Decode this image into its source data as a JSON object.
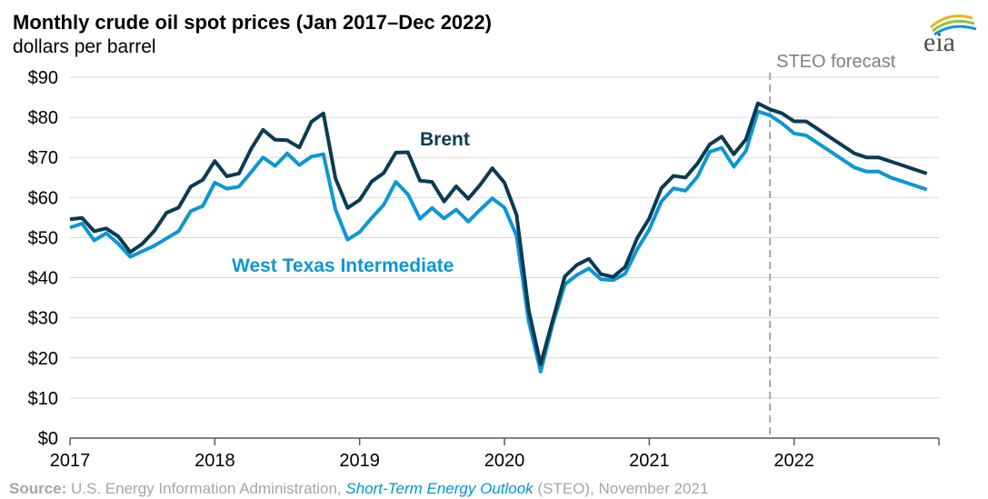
{
  "title": "Monthly crude oil spot prices (Jan 2017–Dec 2022)",
  "subtitle": "dollars per barrel",
  "source": {
    "label": "Source:",
    "text1": " U.S. Energy Information Administration, ",
    "link": "Short-Term Energy Outlook",
    "text2": " (STEO), November 2021"
  },
  "logo": {
    "text": "eia",
    "icon": "eia-logo-icon"
  },
  "colors": {
    "brent": "#0b3b52",
    "wti": "#0e96d3",
    "grid": "#d9d9d9",
    "forecast": "#a6a6a6"
  },
  "chart_data": {
    "type": "line",
    "title": "Monthly crude oil spot prices (Jan 2017–Dec 2022)",
    "ylabel": "dollars per barrel",
    "x_start": "2017-01",
    "frequency": "monthly",
    "ylim": [
      0,
      90
    ],
    "yticks": [
      0,
      10,
      20,
      30,
      40,
      50,
      60,
      70,
      80,
      90
    ],
    "ytick_labels": [
      "$0",
      "$10",
      "$20",
      "$30",
      "$40",
      "$50",
      "$60",
      "$70",
      "$80",
      "$90"
    ],
    "xtick_labels": [
      "2017",
      "2018",
      "2019",
      "2020",
      "2021",
      "2022"
    ],
    "grid": true,
    "forecast": {
      "label": "STEO forecast",
      "start": "2021-11"
    },
    "series": [
      {
        "name": "Brent",
        "color": "#0b3b52",
        "values": [
          54.6,
          54.9,
          51.6,
          52.3,
          50.3,
          46.4,
          48.5,
          51.7,
          56.2,
          57.5,
          62.7,
          64.4,
          69.1,
          65.3,
          66.0,
          72.1,
          76.9,
          74.4,
          74.3,
          72.5,
          78.9,
          81.0,
          64.8,
          57.4,
          59.4,
          64.0,
          66.1,
          71.2,
          71.3,
          64.2,
          63.9,
          59.0,
          62.8,
          59.7,
          63.2,
          67.3,
          63.7,
          55.7,
          32.0,
          18.4,
          29.4,
          40.3,
          43.2,
          44.7,
          40.9,
          40.2,
          42.7,
          49.9,
          54.8,
          62.3,
          65.4,
          65.0,
          68.5,
          73.2,
          75.2,
          70.8,
          74.5,
          83.5,
          82.0,
          81.0,
          79.0,
          79.0,
          77.0,
          75.0,
          73.0,
          71.0,
          70.0,
          70.0,
          69.0,
          68.0,
          67.0,
          66.0
        ]
      },
      {
        "name": "West Texas Intermediate",
        "color": "#0e96d3",
        "values": [
          52.5,
          53.5,
          49.3,
          51.1,
          48.5,
          45.2,
          46.6,
          48.0,
          49.8,
          51.6,
          56.6,
          57.9,
          63.7,
          62.2,
          62.7,
          66.3,
          70.0,
          67.9,
          71.0,
          68.1,
          70.2,
          70.8,
          57.0,
          49.5,
          51.4,
          54.9,
          58.2,
          63.9,
          60.8,
          54.7,
          57.4,
          54.8,
          57.0,
          54.0,
          57.0,
          59.8,
          57.5,
          50.5,
          29.2,
          16.6,
          28.5,
          38.3,
          40.7,
          42.3,
          39.6,
          39.4,
          41.0,
          47.1,
          52.0,
          59.0,
          62.3,
          61.7,
          65.2,
          71.4,
          72.4,
          67.7,
          71.6,
          81.5,
          80.5,
          78.5,
          76.0,
          75.5,
          73.5,
          71.5,
          69.5,
          67.5,
          66.5,
          66.5,
          65.0,
          64.0,
          63.0,
          62.0
        ]
      }
    ],
    "annotations": [
      {
        "text": "Brent",
        "series": "Brent"
      },
      {
        "text": "West Texas Intermediate",
        "series": "West Texas Intermediate"
      }
    ]
  }
}
